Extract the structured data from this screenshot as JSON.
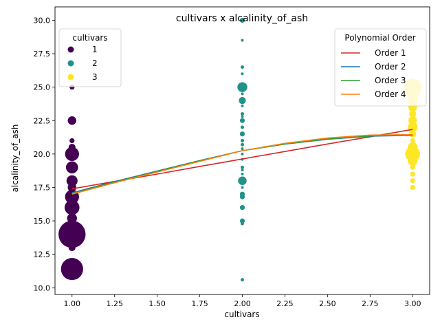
{
  "chart_data": {
    "type": "scatter",
    "title": "cultivars x alcalinity_of_ash",
    "xlabel": "cultivars",
    "ylabel": "alcalinity_of_ash",
    "xlim": [
      0.9,
      3.1
    ],
    "ylim": [
      9.5,
      31.0
    ],
    "xticks": [
      1.0,
      1.25,
      1.5,
      1.75,
      2.0,
      2.25,
      2.5,
      2.75,
      3.0
    ],
    "xtick_labels": [
      "1.00",
      "1.25",
      "1.50",
      "1.75",
      "2.00",
      "2.25",
      "2.50",
      "2.75",
      "3.00"
    ],
    "yticks": [
      10.0,
      12.5,
      15.0,
      17.5,
      20.0,
      22.5,
      25.0,
      27.5,
      30.0
    ],
    "ytick_labels": [
      "10.0",
      "12.5",
      "15.0",
      "17.5",
      "20.0",
      "22.5",
      "25.0",
      "27.5",
      "30.0"
    ],
    "grid": false,
    "scatter_legend": {
      "title": "cultivars",
      "placement": "top-left",
      "entries": [
        {
          "label": "1",
          "color": "#440154"
        },
        {
          "label": "2",
          "color": "#21918c"
        },
        {
          "label": "3",
          "color": "#fde725"
        }
      ]
    },
    "fit_legend": {
      "title": "Polynomial Order",
      "placement": "top-right"
    },
    "points": [
      {
        "x": 1,
        "y": 25.0,
        "count": 1,
        "color": "#440154"
      },
      {
        "x": 1,
        "y": 22.5,
        "count": 3,
        "color": "#440154"
      },
      {
        "x": 1,
        "y": 21.0,
        "count": 1,
        "color": "#440154"
      },
      {
        "x": 1,
        "y": 20.5,
        "count": 2,
        "color": "#440154"
      },
      {
        "x": 1,
        "y": 20.0,
        "count": 8,
        "color": "#440154"
      },
      {
        "x": 1,
        "y": 19.0,
        "count": 6,
        "color": "#440154"
      },
      {
        "x": 1,
        "y": 18.0,
        "count": 5,
        "color": "#440154"
      },
      {
        "x": 1,
        "y": 17.5,
        "count": 3,
        "color": "#440154"
      },
      {
        "x": 1,
        "y": 16.8,
        "count": 8,
        "color": "#440154"
      },
      {
        "x": 1,
        "y": 16.0,
        "count": 9,
        "color": "#440154"
      },
      {
        "x": 1,
        "y": 15.2,
        "count": 4,
        "color": "#440154"
      },
      {
        "x": 1,
        "y": 14.0,
        "count": 30,
        "color": "#440154"
      },
      {
        "x": 1,
        "y": 13.0,
        "count": 2,
        "color": "#440154"
      },
      {
        "x": 1,
        "y": 11.4,
        "count": 20,
        "color": "#440154"
      },
      {
        "x": 2,
        "y": 30.0,
        "count": 1,
        "color": "#21918c"
      },
      {
        "x": 2,
        "y": 28.5,
        "count": 0.3,
        "color": "#21918c"
      },
      {
        "x": 2,
        "y": 26.5,
        "count": 0.5,
        "color": "#21918c"
      },
      {
        "x": 2,
        "y": 26.0,
        "count": 0.3,
        "color": "#21918c"
      },
      {
        "x": 2,
        "y": 25.0,
        "count": 4,
        "color": "#21918c"
      },
      {
        "x": 2,
        "y": 24.5,
        "count": 0.3,
        "color": "#21918c"
      },
      {
        "x": 2,
        "y": 24.0,
        "count": 2,
        "color": "#21918c"
      },
      {
        "x": 2,
        "y": 23.6,
        "count": 0.3,
        "color": "#21918c"
      },
      {
        "x": 2,
        "y": 23.0,
        "count": 0.5,
        "color": "#21918c"
      },
      {
        "x": 2,
        "y": 22.8,
        "count": 0.3,
        "color": "#21918c"
      },
      {
        "x": 2,
        "y": 22.5,
        "count": 1,
        "color": "#21918c"
      },
      {
        "x": 2,
        "y": 22.0,
        "count": 0.5,
        "color": "#21918c"
      },
      {
        "x": 2,
        "y": 21.5,
        "count": 1,
        "color": "#21918c"
      },
      {
        "x": 2,
        "y": 21.0,
        "count": 0.5,
        "color": "#21918c"
      },
      {
        "x": 2,
        "y": 20.7,
        "count": 0.5,
        "color": "#21918c"
      },
      {
        "x": 2,
        "y": 20.4,
        "count": 0.3,
        "color": "#21918c"
      },
      {
        "x": 2,
        "y": 20.0,
        "count": 0.3,
        "color": "#21918c"
      },
      {
        "x": 2,
        "y": 19.6,
        "count": 0.3,
        "color": "#21918c"
      },
      {
        "x": 2,
        "y": 19.0,
        "count": 0.5,
        "color": "#21918c"
      },
      {
        "x": 2,
        "y": 18.8,
        "count": 0.3,
        "color": "#21918c"
      },
      {
        "x": 2,
        "y": 18.5,
        "count": 0.3,
        "color": "#21918c"
      },
      {
        "x": 2,
        "y": 18.0,
        "count": 3,
        "color": "#21918c"
      },
      {
        "x": 2,
        "y": 17.5,
        "count": 0.3,
        "color": "#21918c"
      },
      {
        "x": 2,
        "y": 17.0,
        "count": 1,
        "color": "#21918c"
      },
      {
        "x": 2,
        "y": 16.8,
        "count": 1,
        "color": "#21918c"
      },
      {
        "x": 2,
        "y": 16.0,
        "count": 1,
        "color": "#21918c"
      },
      {
        "x": 2,
        "y": 15.0,
        "count": 1,
        "color": "#21918c"
      },
      {
        "x": 2,
        "y": 14.8,
        "count": 0.5,
        "color": "#21918c"
      },
      {
        "x": 2,
        "y": 10.6,
        "count": 0.5,
        "color": "#21918c"
      },
      {
        "x": 3,
        "y": 25.0,
        "count": 12,
        "color": "#fde725"
      },
      {
        "x": 3,
        "y": 24.5,
        "count": 6,
        "color": "#fde725"
      },
      {
        "x": 3,
        "y": 24.0,
        "count": 4,
        "color": "#fde725"
      },
      {
        "x": 3,
        "y": 23.5,
        "count": 3,
        "color": "#fde725"
      },
      {
        "x": 3,
        "y": 23.0,
        "count": 2,
        "color": "#fde725"
      },
      {
        "x": 3,
        "y": 22.5,
        "count": 3,
        "color": "#fde725"
      },
      {
        "x": 3,
        "y": 22.0,
        "count": 4,
        "color": "#fde725"
      },
      {
        "x": 3,
        "y": 21.5,
        "count": 2,
        "color": "#fde725"
      },
      {
        "x": 3,
        "y": 21.0,
        "count": 1,
        "color": "#fde725"
      },
      {
        "x": 3,
        "y": 20.5,
        "count": 4,
        "color": "#fde725"
      },
      {
        "x": 3,
        "y": 20.0,
        "count": 9,
        "color": "#fde725"
      },
      {
        "x": 3,
        "y": 19.5,
        "count": 4,
        "color": "#fde725"
      },
      {
        "x": 3,
        "y": 19.0,
        "count": 1,
        "color": "#fde725"
      },
      {
        "x": 3,
        "y": 18.5,
        "count": 1,
        "color": "#fde725"
      },
      {
        "x": 3,
        "y": 18.0,
        "count": 1,
        "color": "#fde725"
      },
      {
        "x": 3,
        "y": 17.5,
        "count": 1,
        "color": "#fde725"
      }
    ],
    "fits": [
      {
        "name": "Order 1",
        "color": "#d62728",
        "x": [
          1.0,
          1.25,
          1.5,
          1.75,
          2.0,
          2.25,
          2.5,
          2.75,
          3.0
        ],
        "y": [
          17.4,
          17.95,
          18.5,
          19.07,
          19.63,
          20.19,
          20.75,
          21.29,
          21.84
        ]
      },
      {
        "name": "Order 2",
        "color": "#1f77b4",
        "x": [
          1.0,
          1.25,
          1.5,
          1.75,
          2.0,
          2.25,
          2.5,
          2.75,
          3.0
        ],
        "y": [
          17.1,
          17.94,
          18.73,
          19.51,
          20.25,
          20.74,
          21.1,
          21.33,
          21.4
        ]
      },
      {
        "name": "Order 3",
        "color": "#2ca02c",
        "x": [
          1.0,
          1.25,
          1.5,
          1.75,
          2.0,
          2.25,
          2.5,
          2.75,
          3.0
        ],
        "y": [
          17.05,
          17.9,
          18.7,
          19.5,
          20.25,
          20.75,
          21.12,
          21.35,
          21.42
        ]
      },
      {
        "name": "Order 4",
        "color": "#ff7f0e",
        "x": [
          1.0,
          1.25,
          1.5,
          1.75,
          2.0,
          2.25,
          2.5,
          2.75,
          3.0
        ],
        "y": [
          17.0,
          17.85,
          18.65,
          19.45,
          20.25,
          20.8,
          21.2,
          21.42,
          21.45
        ]
      }
    ]
  }
}
